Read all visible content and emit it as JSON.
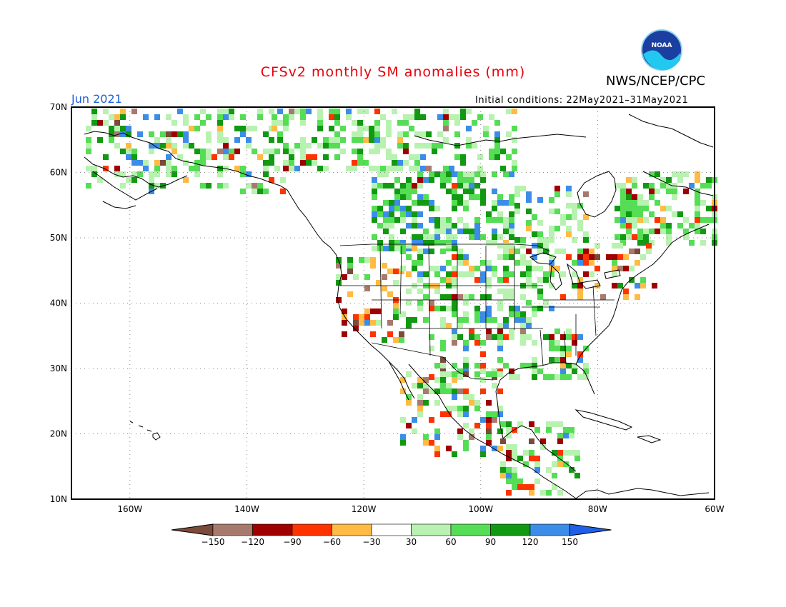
{
  "title": "CFSv2 monthly SM anomalies (mm)",
  "org": "NWS/NCEP/CPC",
  "logo_text": "NOAA",
  "valid_month": "Jun 2021",
  "initial_conditions": "Initial conditions: 22May2021–31May2021",
  "map": {
    "lat_range": [
      10,
      70
    ],
    "lon_range": [
      -170,
      -60
    ],
    "lat_ticks": [
      {
        "value": 70,
        "label": "70N"
      },
      {
        "value": 60,
        "label": "60N"
      },
      {
        "value": 50,
        "label": "50N"
      },
      {
        "value": 40,
        "label": "40N"
      },
      {
        "value": 30,
        "label": "30N"
      },
      {
        "value": 20,
        "label": "20N"
      },
      {
        "value": 10,
        "label": "10N"
      }
    ],
    "lon_ticks": [
      {
        "value": -160,
        "label": "160W"
      },
      {
        "value": -140,
        "label": "140W"
      },
      {
        "value": -120,
        "label": "120W"
      },
      {
        "value": -100,
        "label": "100W"
      },
      {
        "value": -80,
        "label": "80W"
      },
      {
        "value": -60,
        "label": "60W"
      }
    ],
    "grid": "dotted"
  },
  "colorbar": {
    "labels": [
      "−150",
      "−120",
      "−90",
      "−60",
      "−30",
      "30",
      "60",
      "90",
      "120",
      "150"
    ],
    "colors": [
      "#7a4a3a",
      "#a87a6e",
      "#a00000",
      "#ff3300",
      "#ffbb44",
      "#ffffff",
      "#b8f2b0",
      "#55dd55",
      "#119911",
      "#3c8de8",
      "#2060e8"
    ]
  }
}
